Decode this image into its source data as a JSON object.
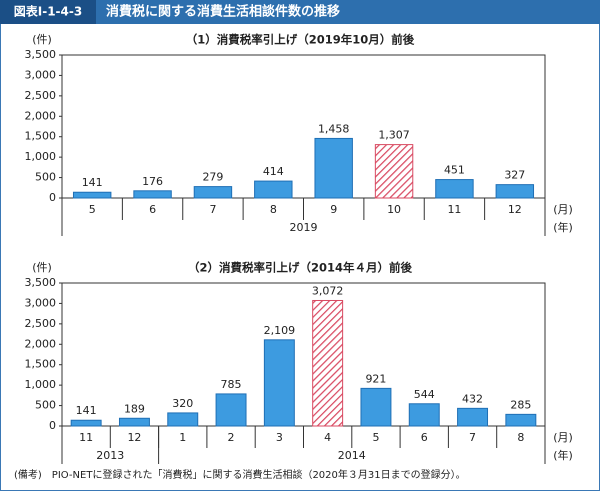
{
  "label": "図表Ⅰ-1-4-3",
  "title": "消費税に関する消費生活相談件数の推移",
  "note": "(備考)　PIO-NETに登録された「消費税」に関する消費生活相談（2020年３月31日までの登録分）。",
  "chart_data": [
    {
      "type": "bar",
      "title": "（1）消費税率引上げ（2019年10月）前後",
      "y_unit": "(件)",
      "x_unit": "(月)",
      "group_unit": "(年)",
      "categories": [
        "5",
        "6",
        "7",
        "8",
        "9",
        "10",
        "11",
        "12"
      ],
      "values": [
        141,
        176,
        279,
        414,
        1458,
        1307,
        451,
        327
      ],
      "value_labels": [
        "141",
        "176",
        "279",
        "414",
        "1,458",
        "1,307",
        "451",
        "327"
      ],
      "groups": [
        {
          "label": "2019",
          "count": 8
        }
      ],
      "color": "#3d9be0",
      "highlight": {
        "index": 5,
        "color": "#d94a62",
        "pattern": "hatch"
      },
      "ylim": [
        0,
        3500
      ],
      "yticks": [
        0,
        500,
        {
          "value": 1000,
          "label": "1,000"
        },
        {
          "value": 1500,
          "label": "1,500"
        },
        {
          "value": 2000,
          "label": "2,000"
        },
        {
          "value": 2500,
          "label": "2,500"
        },
        {
          "value": 3000,
          "label": "3,000"
        },
        {
          "value": 3500,
          "label": "3,500"
        }
      ]
    },
    {
      "type": "bar",
      "title": "（2）消費税率引上げ（2014年４月）前後",
      "y_unit": "(件)",
      "x_unit": "(月)",
      "group_unit": "(年)",
      "categories": [
        "11",
        "12",
        "1",
        "2",
        "3",
        "4",
        "5",
        "6",
        "7",
        "8"
      ],
      "values": [
        141,
        189,
        320,
        785,
        2109,
        3072,
        921,
        544,
        432,
        285
      ],
      "value_labels": [
        "141",
        "189",
        "320",
        "785",
        "2,109",
        "3,072",
        "921",
        "544",
        "432",
        "285"
      ],
      "groups": [
        {
          "label": "2013",
          "count": 2
        },
        {
          "label": "2014",
          "count": 8
        }
      ],
      "color": "#3d9be0",
      "highlight": {
        "index": 5,
        "color": "#d94a62",
        "pattern": "hatch"
      },
      "ylim": [
        0,
        3500
      ],
      "yticks": [
        0,
        500,
        {
          "value": 1000,
          "label": "1,000"
        },
        {
          "value": 1500,
          "label": "1,500"
        },
        {
          "value": 2000,
          "label": "2,000"
        },
        {
          "value": 2500,
          "label": "2,500"
        },
        {
          "value": 3000,
          "label": "3,000"
        },
        {
          "value": 3500,
          "label": "3,500"
        }
      ]
    }
  ]
}
